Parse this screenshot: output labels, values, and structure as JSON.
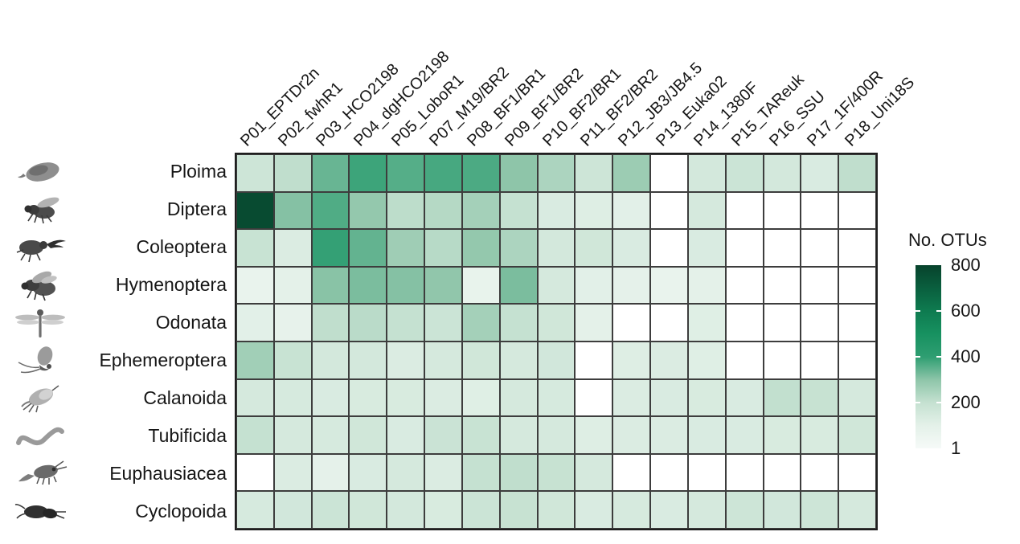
{
  "figure": {
    "background": "#ffffff",
    "gridline_color": "#3d3d3d",
    "outer_border_color": "#1f1f1f"
  },
  "legend": {
    "title": "No. OTUs",
    "ticks": [
      800,
      600,
      400,
      200,
      1
    ]
  },
  "chart_data": {
    "type": "heatmap",
    "legend_title": "No. OTUs",
    "value_range": [
      1,
      800
    ],
    "null_color": "#ffffff",
    "colormap_stops": [
      {
        "value": 1,
        "color": "#f6faf8"
      },
      {
        "value": 100,
        "color": "#e4f1e9"
      },
      {
        "value": 200,
        "color": "#c5e1d1"
      },
      {
        "value": 300,
        "color": "#8ec5a9"
      },
      {
        "value": 400,
        "color": "#2f9e72"
      },
      {
        "value": 500,
        "color": "#179160"
      },
      {
        "value": 600,
        "color": "#0e7b50"
      },
      {
        "value": 700,
        "color": "#0a5f3e"
      },
      {
        "value": 800,
        "color": "#07422c"
      }
    ],
    "columns": [
      "P01_EPTDr2n",
      "P02_fwhR1",
      "P03_HCO2198",
      "P04_dgHCO2198",
      "P05_LoboR1",
      "P07_M19/BR2",
      "P08_BF1/BR1",
      "P09_BF1/BR2",
      "P10_BF2/BR1",
      "P11_BF2/BR2",
      "P12_JB3/JB4.5",
      "P13_Euka02",
      "P14_1380F",
      "P15_TAReuk",
      "P16_SSU",
      "P17_1F/400R",
      "P18_Uni18S"
    ],
    "rows": [
      {
        "label": "Ploima",
        "icon": "rotifer-icon"
      },
      {
        "label": "Diptera",
        "icon": "fly-icon"
      },
      {
        "label": "Coleoptera",
        "icon": "beetle-icon"
      },
      {
        "label": "Hymenoptera",
        "icon": "bee-icon"
      },
      {
        "label": "Odonata",
        "icon": "dragonfly-icon"
      },
      {
        "label": "Ephemeroptera",
        "icon": "mayfly-icon"
      },
      {
        "label": "Calanoida",
        "icon": "copepod-icon"
      },
      {
        "label": "Tubificida",
        "icon": "worm-icon"
      },
      {
        "label": "Euphausiacea",
        "icon": "krill-icon"
      },
      {
        "label": "Cyclopoida",
        "icon": "cyclopoid-copepod-icon"
      }
    ],
    "values": [
      [
        175,
        210,
        340,
        385,
        360,
        375,
        370,
        300,
        245,
        175,
        275,
        0,
        155,
        180,
        155,
        135,
        210
      ],
      [
        770,
        310,
        365,
        290,
        215,
        230,
        260,
        200,
        135,
        120,
        105,
        0,
        150,
        0,
        0,
        0,
        0
      ],
      [
        190,
        130,
        395,
        345,
        270,
        225,
        290,
        245,
        155,
        165,
        135,
        0,
        135,
        0,
        0,
        0,
        0
      ],
      [
        75,
        100,
        305,
        320,
        310,
        295,
        80,
        320,
        150,
        105,
        95,
        75,
        100,
        0,
        0,
        0,
        0
      ],
      [
        105,
        85,
        210,
        220,
        200,
        180,
        260,
        200,
        165,
        100,
        0,
        0,
        115,
        0,
        0,
        0,
        0
      ],
      [
        265,
        190,
        155,
        155,
        130,
        150,
        165,
        150,
        160,
        0,
        120,
        130,
        115,
        0,
        0,
        0,
        0
      ],
      [
        150,
        145,
        135,
        140,
        140,
        130,
        115,
        150,
        145,
        0,
        130,
        135,
        140,
        135,
        205,
        195,
        150
      ],
      [
        200,
        150,
        145,
        165,
        135,
        185,
        190,
        150,
        150,
        120,
        130,
        130,
        135,
        135,
        140,
        140,
        165
      ],
      [
        0,
        130,
        95,
        135,
        150,
        130,
        200,
        210,
        195,
        150,
        0,
        0,
        0,
        0,
        0,
        0,
        0
      ],
      [
        145,
        160,
        180,
        165,
        155,
        140,
        180,
        195,
        165,
        135,
        145,
        135,
        150,
        175,
        160,
        175,
        150
      ]
    ]
  }
}
